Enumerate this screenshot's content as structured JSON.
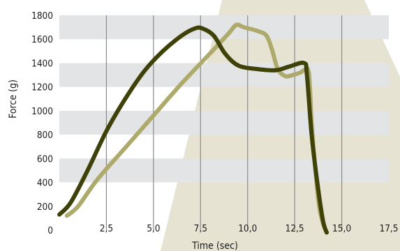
{
  "chart_data": {
    "type": "line",
    "xlabel": "Time (sec)",
    "ylabel": "Force (g)",
    "xlim": [
      0,
      17.5
    ],
    "ylim": [
      0,
      1800
    ],
    "x_ticks": [
      {
        "value": 2.5,
        "label": "2,5"
      },
      {
        "value": 5.0,
        "label": "5,0"
      },
      {
        "value": 7.5,
        "label": "7,5"
      },
      {
        "value": 10.0,
        "label": "10,0"
      },
      {
        "value": 12.5,
        "label": "12,5"
      },
      {
        "value": 15.0,
        "label": "15,0"
      },
      {
        "value": 17.5,
        "label": "17,5"
      }
    ],
    "y_ticks": [
      {
        "value": 0,
        "label": "0"
      },
      {
        "value": 200,
        "label": "200"
      },
      {
        "value": 400,
        "label": "400"
      },
      {
        "value": 600,
        "label": "600"
      },
      {
        "value": 800,
        "label": "800"
      },
      {
        "value": 1000,
        "label": "1000"
      },
      {
        "value": 1200,
        "label": "1200"
      },
      {
        "value": 1400,
        "label": "1400"
      },
      {
        "value": 1600,
        "label": "1600"
      },
      {
        "value": 1800,
        "label": "1800"
      }
    ],
    "grid": "horizontal bands + vertical lines",
    "colors": {
      "band": "#e3e4e6",
      "vertical_grid": "#8a8a8a",
      "background_shape": "#e6e3d2"
    },
    "series": [
      {
        "color": "#3f4208",
        "points": [
          [
            0,
            130
          ],
          [
            0.6,
            230
          ],
          [
            1.5,
            500
          ],
          [
            2.5,
            830
          ],
          [
            3.5,
            1100
          ],
          [
            4.5,
            1330
          ],
          [
            5.5,
            1500
          ],
          [
            6.5,
            1630
          ],
          [
            7.2,
            1690
          ],
          [
            7.6,
            1690
          ],
          [
            8.2,
            1630
          ],
          [
            8.8,
            1480
          ],
          [
            9.5,
            1380
          ],
          [
            10.5,
            1350
          ],
          [
            11.5,
            1340
          ],
          [
            12.2,
            1370
          ],
          [
            13.0,
            1400
          ],
          [
            13.15,
            1300
          ],
          [
            13.4,
            800
          ],
          [
            13.7,
            400
          ],
          [
            14.0,
            80
          ],
          [
            14.2,
            -20
          ]
        ]
      },
      {
        "color": "#adaa6b",
        "points": [
          [
            0.4,
            120
          ],
          [
            1.0,
            200
          ],
          [
            2.0,
            420
          ],
          [
            3.5,
            690
          ],
          [
            5.0,
            960
          ],
          [
            6.5,
            1230
          ],
          [
            8.0,
            1480
          ],
          [
            9.0,
            1650
          ],
          [
            9.4,
            1720
          ],
          [
            9.8,
            1700
          ],
          [
            10.5,
            1670
          ],
          [
            11.0,
            1630
          ],
          [
            11.3,
            1510
          ],
          [
            11.6,
            1350
          ],
          [
            12.0,
            1290
          ],
          [
            12.4,
            1300
          ],
          [
            12.8,
            1320
          ],
          [
            13.0,
            1340
          ],
          [
            13.25,
            1320
          ],
          [
            13.4,
            900
          ],
          [
            13.6,
            500
          ],
          [
            13.8,
            200
          ],
          [
            14.0,
            60
          ],
          [
            14.2,
            -20
          ]
        ]
      }
    ]
  }
}
